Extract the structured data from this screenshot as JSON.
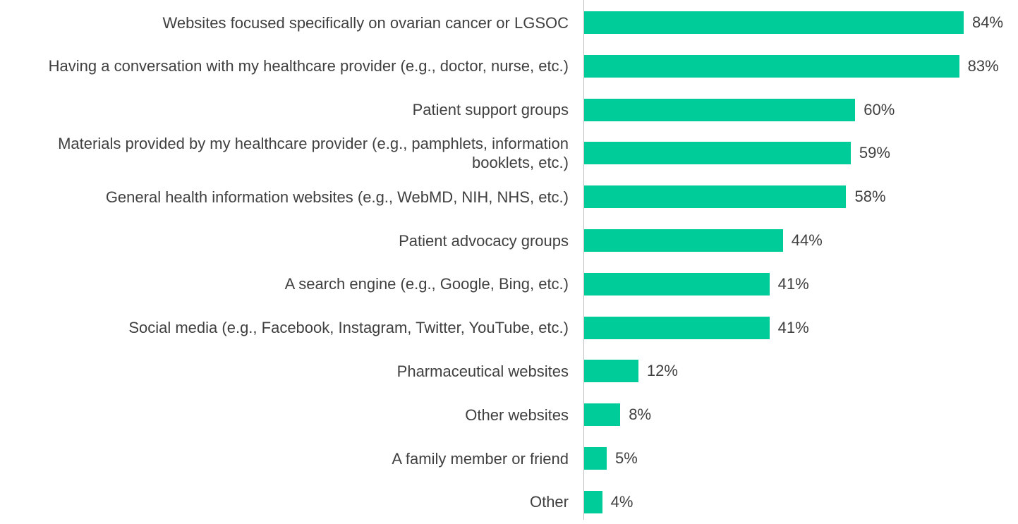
{
  "chart_data": {
    "type": "barh",
    "categories": [
      "Websites focused specifically on ovarian cancer or LGSOC",
      "Having a conversation with my healthcare provider (e.g., doctor, nurse, etc.)",
      "Patient support groups",
      "Materials provided by my healthcare provider (e.g., pamphlets, information booklets, etc.)",
      "General health information websites (e.g., WebMD, NIH, NHS, etc.)",
      "Patient advocacy groups",
      "A search engine (e.g., Google, Bing, etc.)",
      "Social media (e.g., Facebook, Instagram, Twitter, YouTube, etc.)",
      "Pharmaceutical websites",
      "Other websites",
      "A family member or friend",
      "Other"
    ],
    "values": [
      84,
      83,
      60,
      59,
      58,
      44,
      41,
      41,
      12,
      8,
      5,
      4
    ],
    "value_labels": [
      "84%",
      "83%",
      "60%",
      "59%",
      "58%",
      "44%",
      "41%",
      "41%",
      "12%",
      "8%",
      "5%",
      "4%"
    ],
    "color": "#00cc99"
  }
}
